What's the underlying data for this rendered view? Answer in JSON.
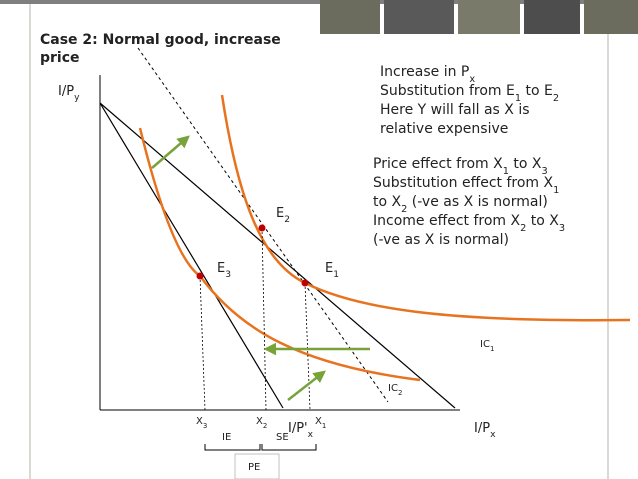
{
  "title": {
    "lines": [
      "Case 2: Normal good, increase",
      "price"
    ]
  },
  "labels": {
    "y_axis": [
      {
        "text": "I/P"
      },
      {
        "sub": "y"
      }
    ],
    "x_axis": [
      {
        "text": "I/P"
      },
      {
        "sub": "x"
      }
    ],
    "x_axis_new": [
      {
        "text": "I/P'"
      },
      {
        "sub": "x"
      }
    ],
    "e1": [
      {
        "text": "E"
      },
      {
        "sub": "1"
      }
    ],
    "e2": [
      {
        "text": "E"
      },
      {
        "sub": "2"
      }
    ],
    "e3": [
      {
        "text": "E"
      },
      {
        "sub": "3"
      }
    ],
    "ic1": [
      {
        "text": "IC"
      },
      {
        "sub": "1"
      }
    ],
    "ic2": [
      {
        "text": "IC"
      },
      {
        "sub": "2"
      }
    ],
    "x1": [
      {
        "text": "X"
      },
      {
        "sub": "1"
      }
    ],
    "x2": [
      {
        "text": "X"
      },
      {
        "sub": "2"
      }
    ],
    "x3": [
      {
        "text": "X"
      },
      {
        "sub": "3"
      }
    ],
    "ie": [
      {
        "text": "IE"
      }
    ],
    "se": [
      {
        "text": "SE"
      }
    ],
    "pe": [
      {
        "text": "PE"
      }
    ]
  },
  "notes": {
    "substitution": [
      [
        {
          "text": "Increase in P"
        },
        {
          "sub": "x"
        }
      ],
      [
        {
          "text": "Substitution from E"
        },
        {
          "sub": "1"
        },
        {
          "text": " to E"
        },
        {
          "sub": "2"
        }
      ],
      [
        {
          "text": "Here Y will fall as X is"
        }
      ],
      [
        {
          "text": "relative expensive"
        }
      ]
    ],
    "price": [
      [
        {
          "text": "Price effect from X"
        },
        {
          "sub": "1"
        },
        {
          "text": " to X"
        },
        {
          "sub": "3"
        }
      ],
      [
        {
          "text": "Substitution effect from X"
        },
        {
          "sub": "1"
        }
      ],
      [
        {
          "text": "to X"
        },
        {
          "sub": "2"
        },
        {
          "text": " (-ve as X is normal)"
        }
      ],
      [
        {
          "text": "Income effect from X"
        },
        {
          "sub": "2"
        },
        {
          "text": " to X"
        },
        {
          "sub": "3"
        }
      ],
      [
        {
          "text": "(-ve as X is normal)"
        }
      ]
    ]
  }
}
